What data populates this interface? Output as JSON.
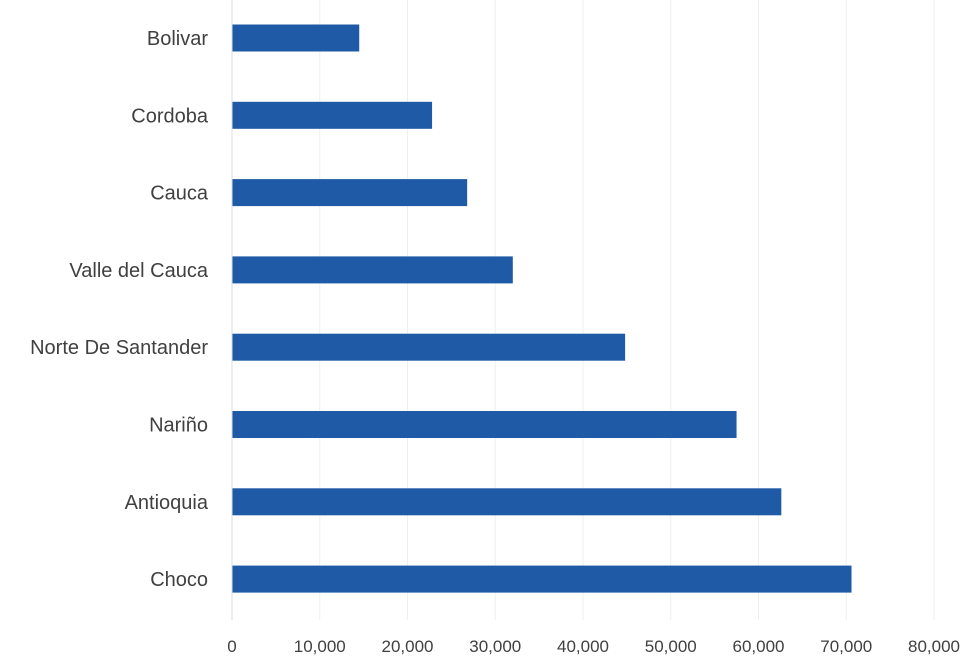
{
  "chart_data": {
    "type": "bar",
    "orientation": "horizontal",
    "title": "",
    "xlabel": "",
    "ylabel": "",
    "categories": [
      "Bolivar",
      "Cordoba",
      "Cauca",
      "Valle del Cauca",
      "Norte De Santander",
      "Nariño",
      "Antioquia",
      "Choco"
    ],
    "values": [
      14500,
      22800,
      26800,
      32000,
      44800,
      57500,
      62600,
      70600
    ],
    "xlim": [
      0,
      80000
    ],
    "x_ticks": [
      "0",
      "10,000",
      "20,000",
      "30,000",
      "40,000",
      "50,000",
      "60,000",
      "70,000",
      "80,000"
    ],
    "grid": "vertical",
    "legend": "none",
    "colors": {
      "bar": "#1F5AA6",
      "grid": "#EDEFF3",
      "axis": "#D9DCE1"
    }
  }
}
